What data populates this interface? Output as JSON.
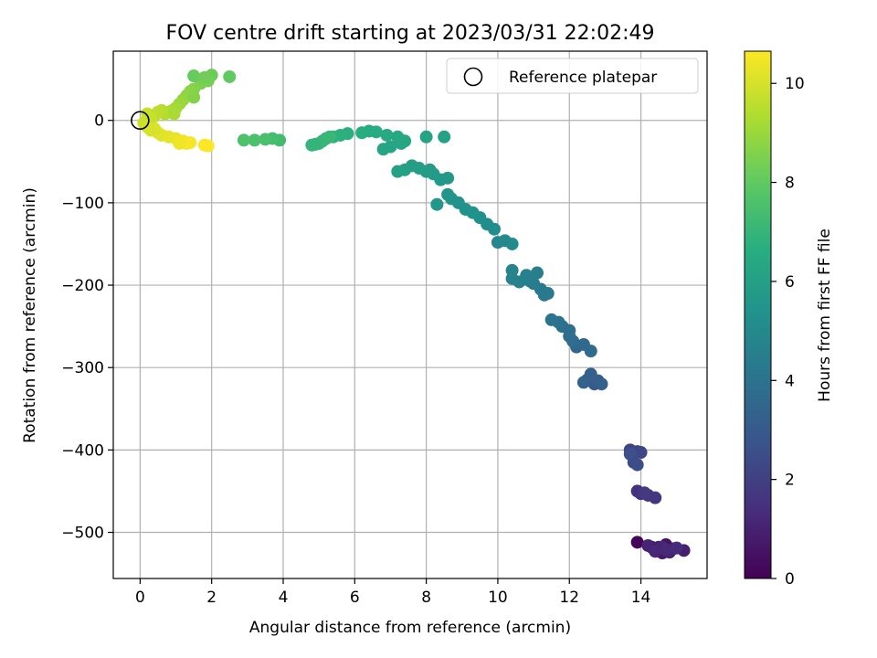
{
  "chart_data": {
    "type": "scatter",
    "title": "FOV centre drift starting at 2023/03/31 22:02:49",
    "xlabel": "Angular distance from reference (arcmin)",
    "ylabel": "Rotation from reference (arcmin)",
    "xlim": [
      -0.75,
      15.85
    ],
    "ylim": [
      -556,
      84
    ],
    "xticks": [
      0,
      2,
      4,
      6,
      8,
      10,
      12,
      14
    ],
    "xtick_labels": [
      "0",
      "2",
      "4",
      "6",
      "8",
      "10",
      "12",
      "14"
    ],
    "yticks": [
      0,
      -100,
      -200,
      -300,
      -400,
      -500
    ],
    "ytick_labels": [
      "0",
      "−100",
      "−200",
      "−300",
      "−400",
      "−500"
    ],
    "grid": true,
    "legend": {
      "placement": "upper-right",
      "entries": [
        "Reference platepar"
      ]
    },
    "colorbar": {
      "label": "Hours from first FF file",
      "range": [
        0,
        10.65
      ],
      "colormap": "viridis",
      "ticks": [
        0,
        2,
        4,
        6,
        8,
        10
      ],
      "tick_labels": [
        "0",
        "2",
        "4",
        "6",
        "8",
        "10"
      ]
    },
    "reference_point": {
      "x": 0,
      "y": 0
    },
    "series": [
      {
        "values": [
          [
            13.9,
            -512,
            0.1
          ],
          [
            14.3,
            -518,
            0.2
          ],
          [
            14.5,
            -522,
            0.35
          ],
          [
            14.7,
            -515,
            0.5
          ],
          [
            14.4,
            -520,
            0.6
          ],
          [
            14.6,
            -525,
            0.7
          ],
          [
            14.9,
            -520,
            0.8
          ],
          [
            15.2,
            -522,
            0.9
          ],
          [
            14.5,
            -518,
            0.95
          ],
          [
            14.8,
            -524,
            1.0
          ],
          [
            14.2,
            -516,
            1.05
          ],
          [
            14.6,
            -518,
            1.1
          ],
          [
            14.4,
            -523,
            1.15
          ],
          [
            14.7,
            -521,
            1.2
          ],
          [
            15.0,
            -519,
            1.25
          ],
          [
            14.0,
            -453,
            1.4
          ],
          [
            13.9,
            -450,
            1.5
          ],
          [
            14.2,
            -455,
            1.6
          ],
          [
            14.4,
            -458,
            1.7
          ],
          [
            14.1,
            -452,
            1.8
          ],
          [
            13.7,
            -400,
            2.1
          ],
          [
            13.9,
            -402,
            2.2
          ],
          [
            14.0,
            -403,
            2.3
          ],
          [
            13.8,
            -415,
            2.4
          ],
          [
            13.9,
            -418,
            2.5
          ],
          [
            13.7,
            -405,
            2.6
          ],
          [
            12.5,
            -315,
            2.9
          ],
          [
            12.7,
            -320,
            3.0
          ],
          [
            12.8,
            -316,
            3.1
          ],
          [
            12.6,
            -308,
            3.2
          ],
          [
            12.9,
            -320,
            3.3
          ],
          [
            12.4,
            -318,
            3.35
          ],
          [
            12.2,
            -275,
            3.5
          ],
          [
            12.4,
            -272,
            3.6
          ],
          [
            12.6,
            -280,
            3.7
          ],
          [
            12.1,
            -268,
            3.75
          ],
          [
            12.0,
            -255,
            3.85
          ],
          [
            11.8,
            -250,
            3.9
          ],
          [
            11.7,
            -245,
            4.0
          ],
          [
            11.5,
            -242,
            4.05
          ],
          [
            12.0,
            -262,
            3.8
          ],
          [
            11.3,
            -212,
            4.2
          ],
          [
            11.2,
            -205,
            4.3
          ],
          [
            11.4,
            -210,
            4.35
          ],
          [
            11.0,
            -198,
            4.4
          ],
          [
            10.9,
            -195,
            4.45
          ],
          [
            11.1,
            -185,
            4.5
          ],
          [
            10.8,
            -188,
            4.6
          ],
          [
            10.6,
            -196,
            4.65
          ],
          [
            10.4,
            -192,
            4.7
          ],
          [
            10.4,
            -182,
            4.75
          ],
          [
            10.0,
            -148,
            4.9
          ],
          [
            10.2,
            -146,
            5.0
          ],
          [
            10.4,
            -150,
            5.05
          ],
          [
            9.9,
            -132,
            5.15
          ],
          [
            9.7,
            -126,
            5.2
          ],
          [
            9.5,
            -118,
            5.3
          ],
          [
            9.3,
            -112,
            5.35
          ],
          [
            9.1,
            -108,
            5.4
          ],
          [
            8.9,
            -100,
            5.45
          ],
          [
            8.7,
            -95,
            5.5
          ],
          [
            8.6,
            -90,
            5.55
          ],
          [
            8.3,
            -102,
            5.6
          ],
          [
            8.4,
            -72,
            5.7
          ],
          [
            8.6,
            -70,
            5.75
          ],
          [
            8.2,
            -65,
            5.8
          ],
          [
            8.0,
            -62,
            5.85
          ],
          [
            7.8,
            -58,
            5.9
          ],
          [
            7.6,
            -55,
            5.95
          ],
          [
            7.4,
            -60,
            6.0
          ],
          [
            7.2,
            -62,
            6.05
          ],
          [
            8.1,
            -60,
            5.82
          ],
          [
            6.8,
            -35,
            6.2
          ],
          [
            7.0,
            -32,
            6.25
          ],
          [
            7.3,
            -28,
            6.3
          ],
          [
            7.4,
            -25,
            6.35
          ],
          [
            7.2,
            -20,
            6.4
          ],
          [
            6.9,
            -18,
            6.45
          ],
          [
            6.6,
            -14,
            6.5
          ],
          [
            6.4,
            -13,
            6.55
          ],
          [
            6.2,
            -15,
            6.6
          ],
          [
            8.0,
            -20,
            6.15
          ],
          [
            8.5,
            -20,
            6.1
          ],
          [
            5.8,
            -16,
            6.7
          ],
          [
            5.6,
            -18,
            6.75
          ],
          [
            5.4,
            -20,
            6.8
          ],
          [
            5.2,
            -22,
            6.85
          ],
          [
            5.0,
            -28,
            6.9
          ],
          [
            4.8,
            -30,
            7.0
          ],
          [
            5.1,
            -25,
            7.05
          ],
          [
            5.3,
            -20,
            7.1
          ],
          [
            4.9,
            -29,
            6.95
          ],
          [
            3.9,
            -24,
            7.3
          ],
          [
            3.7,
            -22,
            7.4
          ],
          [
            3.5,
            -23,
            7.5
          ],
          [
            3.2,
            -24,
            7.55
          ],
          [
            2.9,
            -24,
            7.6
          ],
          [
            2.5,
            53,
            8.0
          ],
          [
            2.0,
            55,
            8.2
          ],
          [
            1.9,
            48,
            8.4
          ],
          [
            1.7,
            45,
            8.5
          ],
          [
            1.5,
            38,
            8.6
          ],
          [
            1.4,
            35,
            8.7
          ],
          [
            1.3,
            30,
            8.8
          ],
          [
            1.2,
            25,
            8.9
          ],
          [
            1.5,
            28,
            8.65
          ],
          [
            1.1,
            20,
            9.0
          ],
          [
            1.0,
            15,
            9.1
          ],
          [
            0.9,
            12,
            9.2
          ],
          [
            0.8,
            10,
            9.3
          ],
          [
            0.7,
            8,
            9.4
          ],
          [
            0.6,
            12,
            9.5
          ],
          [
            0.5,
            10,
            9.55
          ],
          [
            0.4,
            5,
            9.6
          ],
          [
            0.3,
            2,
            9.7
          ],
          [
            0.2,
            8,
            9.75
          ],
          [
            1.5,
            54,
            8.1
          ],
          [
            1.8,
            52,
            8.3
          ],
          [
            0.95,
            8,
            9.25
          ],
          [
            0.1,
            -3,
            9.8
          ],
          [
            0.2,
            -8,
            9.9
          ],
          [
            0.3,
            -12,
            10.0
          ],
          [
            0.5,
            -15,
            10.1
          ],
          [
            0.6,
            -18,
            10.15
          ],
          [
            0.8,
            -20,
            10.25
          ],
          [
            1.0,
            -22,
            10.3
          ],
          [
            1.2,
            -25,
            10.4
          ],
          [
            1.3,
            -28,
            10.5
          ],
          [
            1.4,
            -27,
            10.55
          ],
          [
            1.8,
            -30,
            10.6
          ],
          [
            1.9,
            -31,
            10.62
          ],
          [
            0.4,
            -10,
            10.05
          ],
          [
            1.1,
            -28,
            10.45
          ]
        ]
      }
    ]
  }
}
